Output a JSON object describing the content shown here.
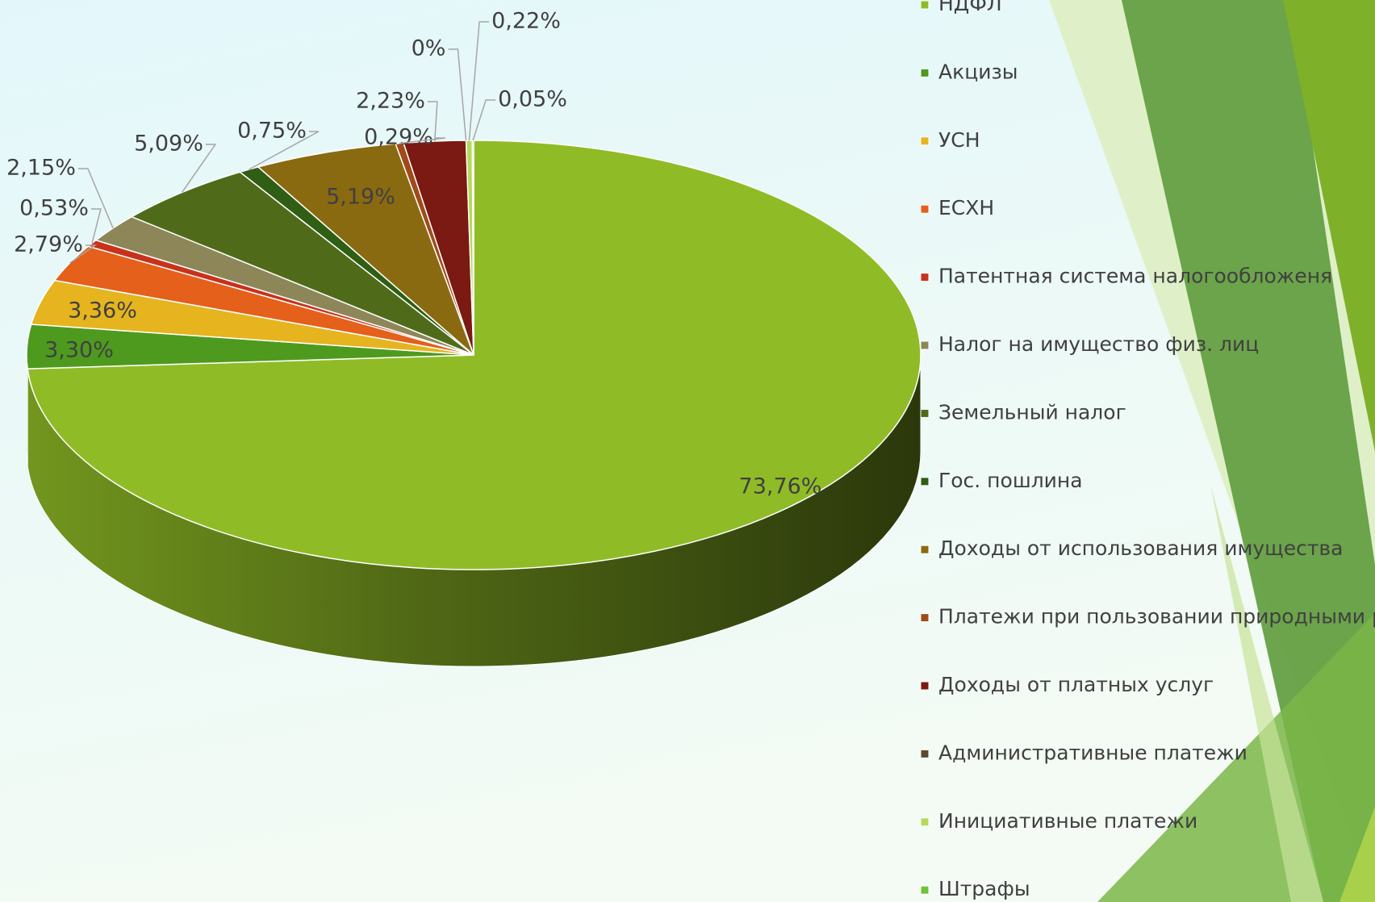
{
  "chart_data": {
    "type": "pie3d",
    "categories": [
      "НДФЛ",
      "Акцизы",
      "УСН",
      "ЕСХН",
      "Патентная система налогообложеня",
      "Налог на имущество физ. лиц",
      "Земельный налог",
      "Гос. пошлина",
      "Доходы от использования имущества",
      "Платежи при пользовании природными ресурсами",
      "Доходы от платных услуг",
      "Административные платежи",
      "Инициативные платежи",
      "Штрафы"
    ],
    "values": [
      73.76,
      3.3,
      3.36,
      2.79,
      0.53,
      2.15,
      5.09,
      0.75,
      5.19,
      0.29,
      2.23,
      0,
      0.22,
      0.05
    ],
    "value_labels": [
      "73,76%",
      "3,30%",
      "3,36%",
      "2,79%",
      "0,53%",
      "2,15%",
      "5,09%",
      "0,75%",
      "5,19%",
      "0,29%",
      "2,23%",
      "0%",
      "0,22%",
      "0,05%"
    ],
    "colors": [
      "#8fbc26",
      "#4e9a1f",
      "#e5b41f",
      "#e4601b",
      "#c8321b",
      "#8d8659",
      "#4f6b19",
      "#2f5e14",
      "#8a6a10",
      "#a04a1a",
      "#7a1a12",
      "#5a4a30",
      "#b5d95a",
      "#6ec43a"
    ],
    "legend": "right"
  }
}
